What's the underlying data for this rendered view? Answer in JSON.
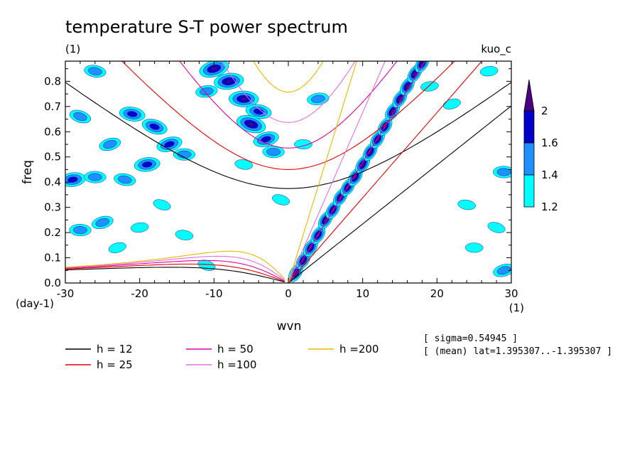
{
  "chart_data": {
    "type": "heatmap",
    "title": "temperature S-T power spectrum",
    "subtitle_left": "(1)",
    "subtitle_right": "kuo_c",
    "xlabel": "wvn",
    "ylabel": "freq",
    "x_unit": "(1)",
    "y_unit": "(day-1)",
    "xlim": [
      -30,
      30
    ],
    "ylim": [
      0,
      0.88
    ],
    "xticks": [
      -30,
      -20,
      -10,
      0,
      10,
      20,
      30
    ],
    "xtick_labels": [
      "-30",
      "-20",
      "-10",
      "0",
      "10",
      "20",
      "30"
    ],
    "yticks": [
      0.0,
      0.1,
      0.2,
      0.3,
      0.4,
      0.5,
      0.6,
      0.7,
      0.8
    ],
    "ytick_labels": [
      "0.0",
      "0.1",
      "0.2",
      "0.3",
      "0.4",
      "0.5",
      "0.6",
      "0.7",
      "0.8"
    ],
    "colorbar": {
      "levels": [
        "1.2",
        "1.4",
        "1.6",
        "2"
      ],
      "colors": [
        "#00ffff",
        "#1e90ff",
        "#0000cd",
        "#4b0082"
      ]
    },
    "dispersion_curves": [
      {
        "label": "h = 12",
        "h": 12,
        "color": "#000000"
      },
      {
        "label": "h = 25",
        "h": 25,
        "color": "#e00000"
      },
      {
        "label": "h = 50",
        "h": 50,
        "color": "#e000a0"
      },
      {
        "label": "h =100",
        "h": 100,
        "color": "#e070e0"
      },
      {
        "label": "h =200",
        "h": 200,
        "color": "#e8b800"
      }
    ],
    "kelvin_ridge": [
      {
        "x": 1,
        "y": 0.04
      },
      {
        "x": 2,
        "y": 0.09
      },
      {
        "x": 3,
        "y": 0.14
      },
      {
        "x": 4,
        "y": 0.19
      },
      {
        "x": 5,
        "y": 0.25
      },
      {
        "x": 6,
        "y": 0.29
      },
      {
        "x": 7,
        "y": 0.34
      },
      {
        "x": 8,
        "y": 0.38
      },
      {
        "x": 9,
        "y": 0.42
      },
      {
        "x": 10,
        "y": 0.47
      },
      {
        "x": 11,
        "y": 0.52
      },
      {
        "x": 12,
        "y": 0.57
      },
      {
        "x": 13,
        "y": 0.62
      },
      {
        "x": 14,
        "y": 0.68
      },
      {
        "x": 15,
        "y": 0.73
      },
      {
        "x": 16,
        "y": 0.78
      },
      {
        "x": 17,
        "y": 0.83
      },
      {
        "x": 18,
        "y": 0.87
      }
    ],
    "rossby_blobs": [
      {
        "x": -10,
        "y": 0.85,
        "level": 3
      },
      {
        "x": -8,
        "y": 0.8,
        "level": 3
      },
      {
        "x": -6,
        "y": 0.73,
        "level": 3
      },
      {
        "x": -4,
        "y": 0.68,
        "level": 2
      },
      {
        "x": -5,
        "y": 0.63,
        "level": 3
      },
      {
        "x": -3,
        "y": 0.57,
        "level": 2
      },
      {
        "x": -11,
        "y": 0.76,
        "level": 1
      },
      {
        "x": -2,
        "y": 0.52,
        "level": 1
      },
      {
        "x": -21,
        "y": 0.67,
        "level": 2
      },
      {
        "x": -18,
        "y": 0.62,
        "level": 2
      },
      {
        "x": -16,
        "y": 0.55,
        "level": 2
      },
      {
        "x": -19,
        "y": 0.47,
        "level": 2
      },
      {
        "x": -14,
        "y": 0.51,
        "level": 1
      },
      {
        "x": -26,
        "y": 0.84,
        "level": 1
      },
      {
        "x": -28,
        "y": 0.66,
        "level": 1
      },
      {
        "x": -24,
        "y": 0.55,
        "level": 1
      },
      {
        "x": -29,
        "y": 0.41,
        "level": 2
      },
      {
        "x": -26,
        "y": 0.42,
        "level": 1
      },
      {
        "x": -22,
        "y": 0.41,
        "level": 1
      },
      {
        "x": -17,
        "y": 0.31,
        "level": 0
      },
      {
        "x": -25,
        "y": 0.24,
        "level": 1
      },
      {
        "x": -20,
        "y": 0.22,
        "level": 0
      },
      {
        "x": -28,
        "y": 0.21,
        "level": 1
      },
      {
        "x": -14,
        "y": 0.19,
        "level": 0
      },
      {
        "x": -11,
        "y": 0.07,
        "level": 0
      },
      {
        "x": -23,
        "y": 0.14,
        "level": 0
      },
      {
        "x": 4,
        "y": 0.73,
        "level": 1
      },
      {
        "x": 2,
        "y": 0.55,
        "level": 0
      },
      {
        "x": -6,
        "y": 0.47,
        "level": 0
      },
      {
        "x": -1,
        "y": 0.33,
        "level": 0
      },
      {
        "x": 22,
        "y": 0.71,
        "level": 0
      },
      {
        "x": 27,
        "y": 0.84,
        "level": 0
      },
      {
        "x": 29,
        "y": 0.44,
        "level": 1
      },
      {
        "x": 24,
        "y": 0.31,
        "level": 0
      },
      {
        "x": 28,
        "y": 0.22,
        "level": 0
      },
      {
        "x": 29,
        "y": 0.05,
        "level": 1
      },
      {
        "x": 19,
        "y": 0.78,
        "level": 0
      },
      {
        "x": 25,
        "y": 0.14,
        "level": 0
      }
    ]
  },
  "info": {
    "sigma": "[ sigma=0.54945 ]",
    "mean": "[ (mean) lat=1.395307..-1.395307 ]"
  }
}
